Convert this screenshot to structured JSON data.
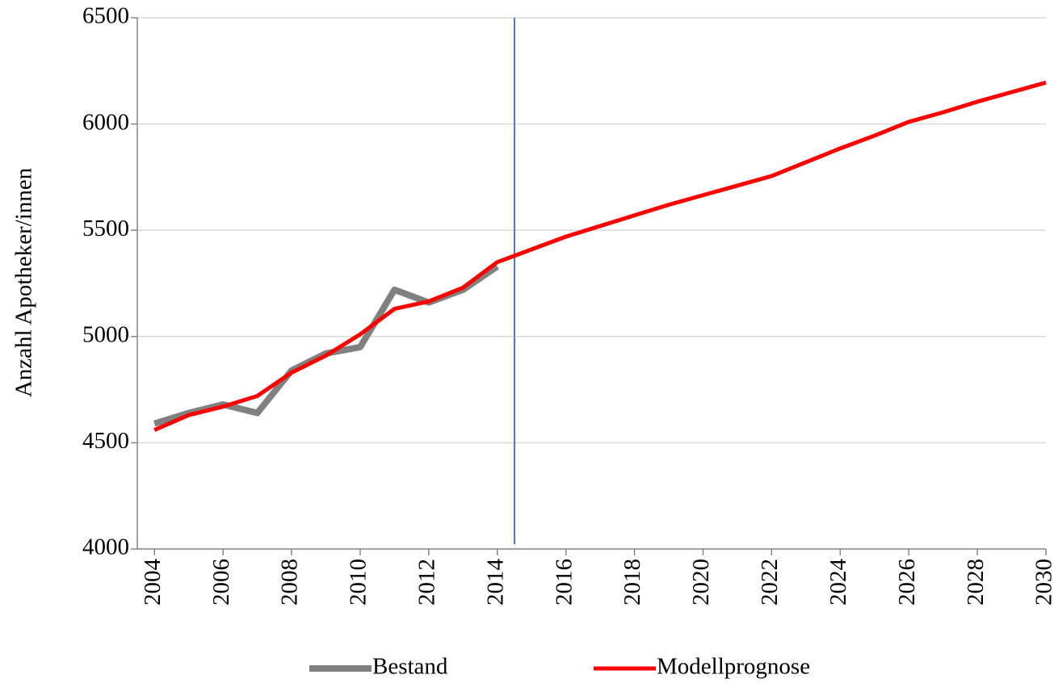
{
  "chart_data": {
    "type": "line",
    "ylabel": "Anzahl Apotheker/innen",
    "x": [
      2004,
      2005,
      2006,
      2007,
      2008,
      2009,
      2010,
      2011,
      2012,
      2013,
      2014,
      2015,
      2016,
      2017,
      2018,
      2019,
      2020,
      2021,
      2022,
      2023,
      2024,
      2025,
      2026,
      2027,
      2028,
      2029,
      2030
    ],
    "series": [
      {
        "name": "Bestand",
        "color": "#808080",
        "values": [
          4590,
          4640,
          4680,
          4640,
          4840,
          4920,
          4950,
          5220,
          5160,
          5220,
          5330,
          null,
          null,
          null,
          null,
          null,
          null,
          null,
          null,
          null,
          null,
          null,
          null,
          null,
          null,
          null,
          null
        ]
      },
      {
        "name": "Modellprognose",
        "color": "#ff0000",
        "values": [
          4560,
          4630,
          4670,
          4720,
          4830,
          4910,
          5010,
          5130,
          5165,
          5230,
          5350,
          5410,
          5470,
          5520,
          5570,
          5620,
          5665,
          5710,
          5755,
          5820,
          5885,
          5945,
          6010,
          6055,
          6105,
          6150,
          6195
        ]
      }
    ],
    "xlim": [
      2003.5,
      2030
    ],
    "xticks": [
      2004,
      2006,
      2008,
      2010,
      2012,
      2014,
      2016,
      2018,
      2020,
      2022,
      2024,
      2026,
      2028,
      2030
    ],
    "ylim": [
      4000,
      6500
    ],
    "yticks": [
      4000,
      4500,
      5000,
      5500,
      6000,
      6500
    ],
    "vline": 2014.5,
    "grid": true,
    "legend": "bottom"
  }
}
